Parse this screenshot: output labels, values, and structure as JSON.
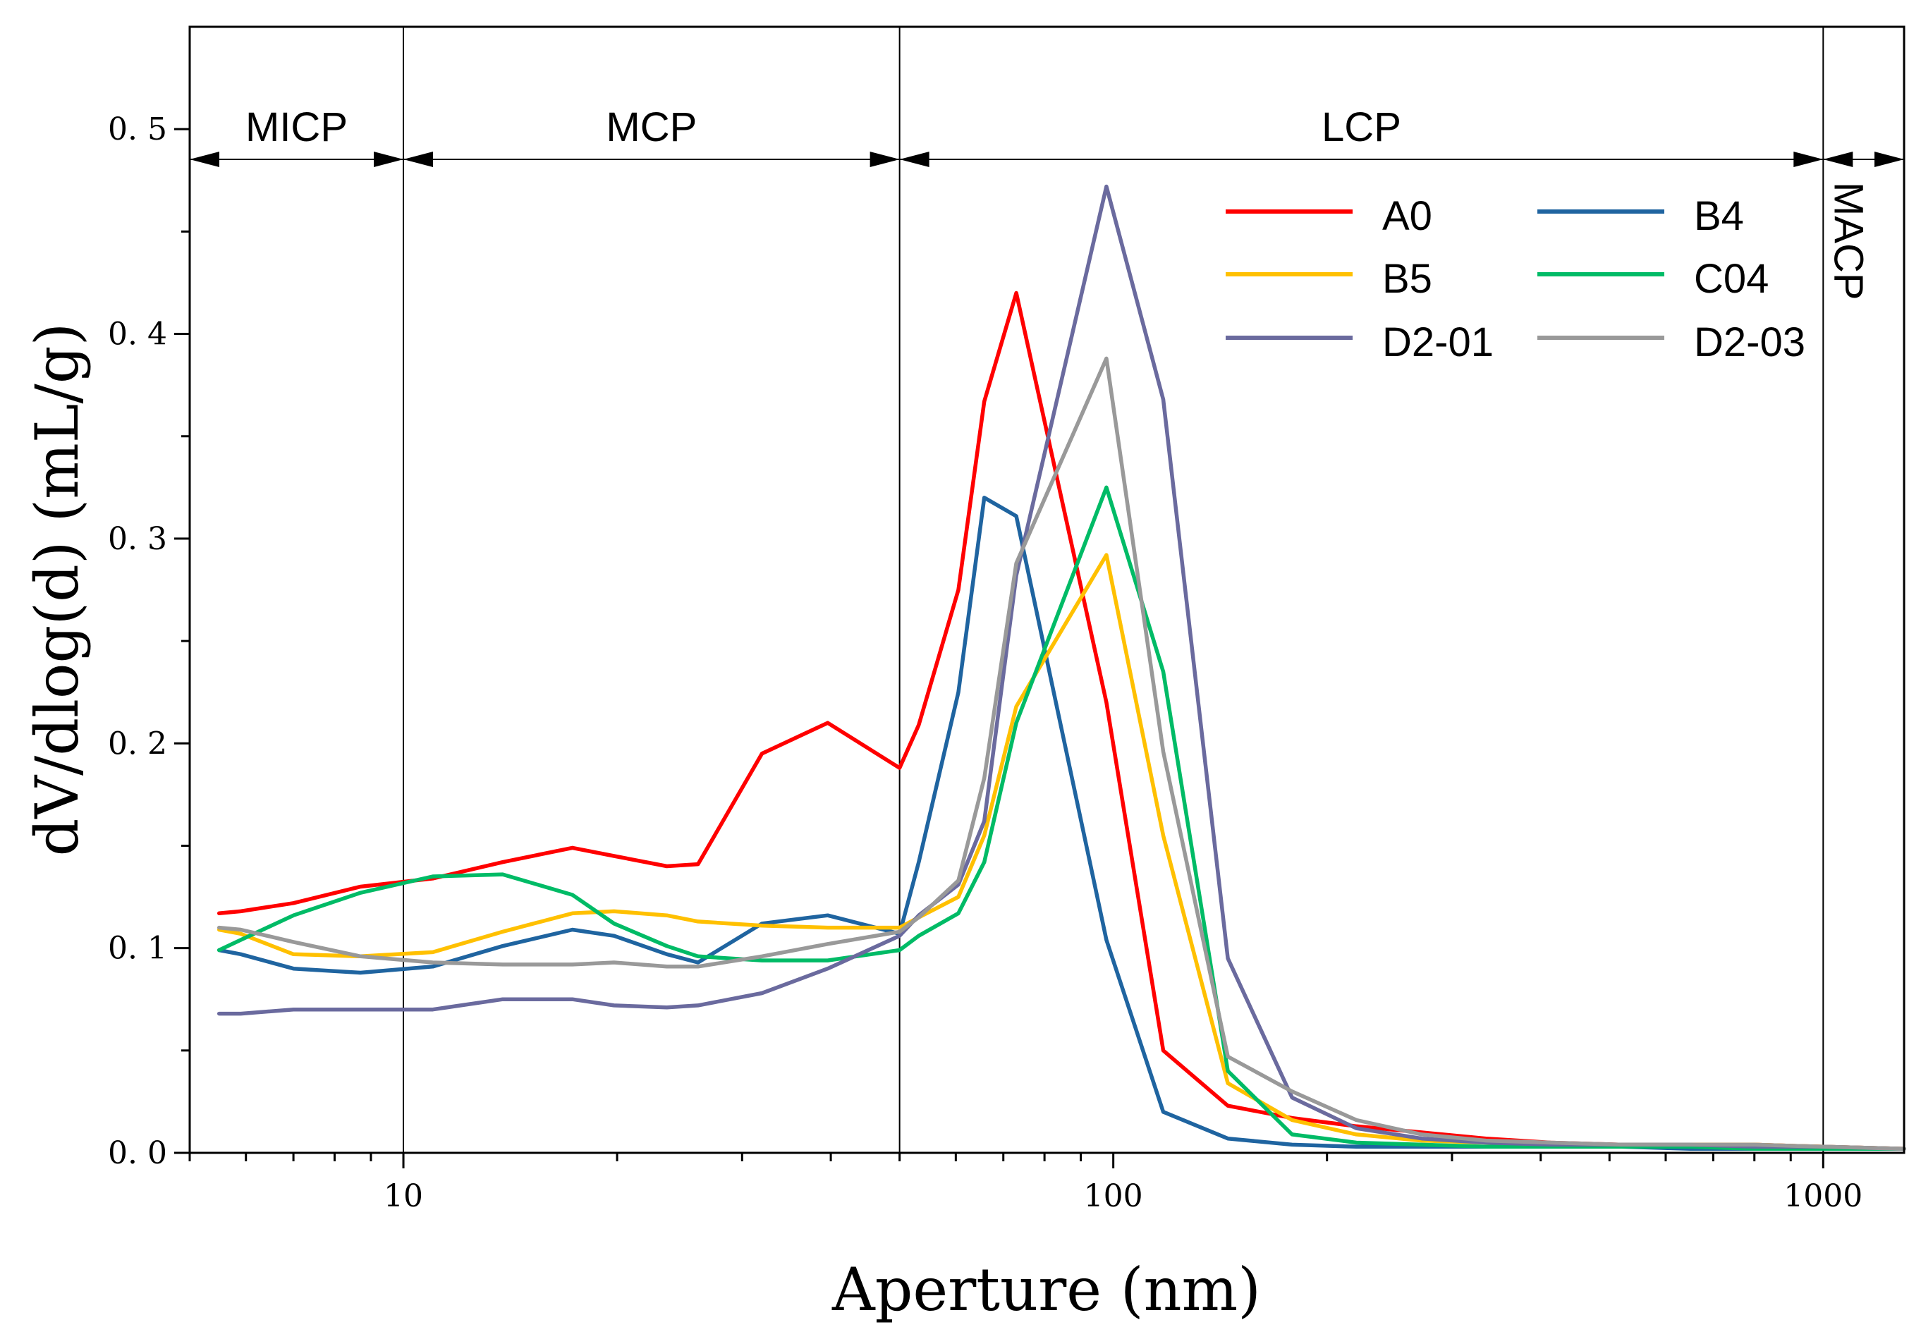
{
  "chart_data": {
    "type": "line",
    "title": "",
    "xlabel": "Aperture (nm)",
    "ylabel": "dV/dlog(d) (mL/g)",
    "xscale": "log",
    "xlim": [
      5,
      1300
    ],
    "ylim": [
      0,
      0.55
    ],
    "x_ticks": [
      {
        "value": 10,
        "label": "10"
      },
      {
        "value": 100,
        "label": "100"
      },
      {
        "value": 1000,
        "label": "1000"
      }
    ],
    "y_ticks": [
      {
        "value": 0.0,
        "label": "0. 0"
      },
      {
        "value": 0.1,
        "label": "0. 1"
      },
      {
        "value": 0.2,
        "label": "0. 2"
      },
      {
        "value": 0.3,
        "label": "0. 3"
      },
      {
        "value": 0.4,
        "label": "0. 4"
      },
      {
        "value": 0.5,
        "label": "0. 5"
      }
    ],
    "regions": [
      {
        "label": "MICP",
        "from": 5,
        "to": 10
      },
      {
        "label": "MCP",
        "from": 10,
        "to": 50
      },
      {
        "label": "LCP",
        "from": 50,
        "to": 1000
      },
      {
        "label": "MACP",
        "from": 1000,
        "to": 1300
      }
    ],
    "region_boundaries": [
      10,
      50,
      1000
    ],
    "legend_position": "top-right",
    "series": [
      {
        "name": "A0",
        "color": "#ff0000",
        "x": [
          5.5,
          5.9,
          7,
          8.7,
          11,
          13.8,
          17.3,
          19.8,
          23.5,
          26,
          32,
          39.6,
          50,
          53.2,
          60.5,
          65.8,
          73,
          97.8,
          117.6,
          145,
          178.6,
          220,
          272,
          335,
          413,
          520,
          650,
          800,
          1000,
          1300
        ],
        "y": [
          0.117,
          0.118,
          0.122,
          0.13,
          0.134,
          0.142,
          0.149,
          0.145,
          0.14,
          0.141,
          0.195,
          0.21,
          0.188,
          0.209,
          0.275,
          0.367,
          0.42,
          0.22,
          0.05,
          0.023,
          0.017,
          0.013,
          0.01,
          0.007,
          0.005,
          0.004,
          0.004,
          0.004,
          0.003,
          0.002
        ]
      },
      {
        "name": "B4",
        "color": "#1f64a0",
        "x": [
          5.5,
          5.9,
          7,
          8.7,
          11,
          13.8,
          17.3,
          19.8,
          23.5,
          26,
          32,
          39.6,
          50,
          53.2,
          60.5,
          65.8,
          73,
          97.8,
          117.6,
          145,
          178.6,
          220,
          272,
          335,
          413,
          520,
          650,
          800,
          1000,
          1300
        ],
        "y": [
          0.099,
          0.097,
          0.09,
          0.088,
          0.091,
          0.101,
          0.109,
          0.106,
          0.097,
          0.093,
          0.112,
          0.116,
          0.107,
          0.142,
          0.225,
          0.32,
          0.311,
          0.104,
          0.02,
          0.007,
          0.004,
          0.003,
          0.003,
          0.003,
          0.003,
          0.003,
          0.002,
          0.002,
          0.002,
          0.002
        ]
      },
      {
        "name": "B5",
        "color": "#ffc000",
        "x": [
          5.5,
          5.9,
          7,
          8.7,
          11,
          13.8,
          17.3,
          19.8,
          23.5,
          26,
          32,
          39.6,
          50,
          53.2,
          60.5,
          65.8,
          73,
          97.8,
          117.6,
          145,
          178.6,
          220,
          272,
          335,
          413,
          520,
          650,
          800,
          1000,
          1300
        ],
        "y": [
          0.109,
          0.107,
          0.097,
          0.096,
          0.098,
          0.108,
          0.117,
          0.118,
          0.116,
          0.113,
          0.111,
          0.11,
          0.11,
          0.115,
          0.125,
          0.155,
          0.218,
          0.292,
          0.155,
          0.034,
          0.016,
          0.009,
          0.006,
          0.005,
          0.004,
          0.004,
          0.004,
          0.004,
          0.003,
          0.002
        ]
      },
      {
        "name": "C04",
        "color": "#00bb66",
        "x": [
          5.5,
          5.9,
          7,
          8.7,
          11,
          13.8,
          17.3,
          19.8,
          23.5,
          26,
          32,
          39.6,
          50,
          53.2,
          60.5,
          65.8,
          73,
          97.8,
          117.6,
          145,
          178.6,
          220,
          272,
          335,
          413,
          520,
          650,
          800,
          1000,
          1300
        ],
        "y": [
          0.099,
          0.104,
          0.116,
          0.127,
          0.135,
          0.136,
          0.126,
          0.112,
          0.101,
          0.096,
          0.094,
          0.094,
          0.099,
          0.106,
          0.117,
          0.142,
          0.21,
          0.325,
          0.235,
          0.04,
          0.009,
          0.005,
          0.004,
          0.003,
          0.003,
          0.003,
          0.003,
          0.002,
          0.002,
          0.002
        ]
      },
      {
        "name": "D2-01",
        "color": "#6a6a9e",
        "x": [
          5.5,
          5.9,
          7,
          8.7,
          11,
          13.8,
          17.3,
          19.8,
          23.5,
          26,
          32,
          39.6,
          50,
          53.2,
          60.5,
          65.8,
          73,
          97.8,
          117.6,
          145,
          178.6,
          220,
          272,
          335,
          413,
          520,
          650,
          800,
          1000,
          1300
        ],
        "y": [
          0.068,
          0.068,
          0.07,
          0.07,
          0.07,
          0.075,
          0.075,
          0.072,
          0.071,
          0.072,
          0.078,
          0.09,
          0.106,
          0.116,
          0.131,
          0.162,
          0.282,
          0.472,
          0.368,
          0.095,
          0.027,
          0.012,
          0.007,
          0.005,
          0.004,
          0.004,
          0.004,
          0.003,
          0.003,
          0.002
        ]
      },
      {
        "name": "D2-03",
        "color": "#999999",
        "x": [
          5.5,
          5.9,
          7,
          8.7,
          11,
          13.8,
          17.3,
          19.8,
          23.5,
          26,
          32,
          39.6,
          50,
          53.2,
          60.5,
          65.8,
          73,
          97.8,
          117.6,
          145,
          178.6,
          220,
          272,
          335,
          413,
          520,
          650,
          800,
          1000,
          1300
        ],
        "y": [
          0.11,
          0.109,
          0.103,
          0.096,
          0.093,
          0.092,
          0.092,
          0.093,
          0.091,
          0.091,
          0.096,
          0.102,
          0.108,
          0.115,
          0.133,
          0.183,
          0.288,
          0.388,
          0.196,
          0.047,
          0.03,
          0.016,
          0.009,
          0.006,
          0.005,
          0.004,
          0.004,
          0.004,
          0.003,
          0.002
        ]
      }
    ]
  }
}
